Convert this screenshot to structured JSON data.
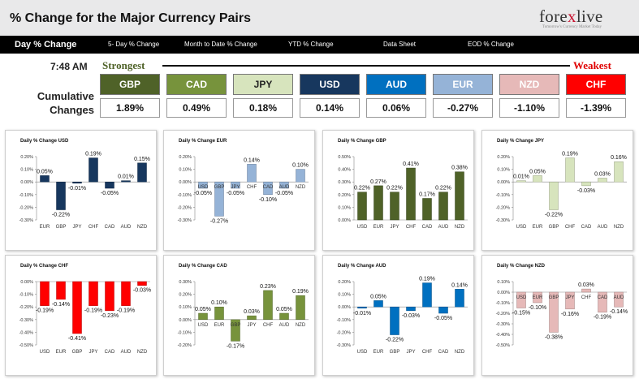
{
  "header": {
    "title": "% Change for the Major Currency Pairs",
    "logo_text_main": "fore",
    "logo_text_x": "x",
    "logo_text_end": "live",
    "logo_tagline": "Tomorrow's Currency Market Today"
  },
  "nav": {
    "items": [
      "Day % Change",
      "5- Day % Change",
      "Month to Date % Change",
      "YTD % Change",
      "Data Sheet",
      "EOD % Change"
    ]
  },
  "summary": {
    "time": "7:48 AM",
    "strongest_label": "Strongest",
    "weakest_label": "Weakest",
    "cumulative_line1": "Cumulative",
    "cumulative_line2": "Changes",
    "tiles": [
      {
        "code": "GBP",
        "value": "1.89%",
        "bg": "#4f6228",
        "fg": "#ffffff"
      },
      {
        "code": "CAD",
        "value": "0.49%",
        "bg": "#77933c",
        "fg": "#ffffff"
      },
      {
        "code": "JPY",
        "value": "0.18%",
        "bg": "#d7e4bd",
        "fg": "#222222"
      },
      {
        "code": "USD",
        "value": "0.14%",
        "bg": "#17375e",
        "fg": "#ffffff"
      },
      {
        "code": "AUD",
        "value": "0.06%",
        "bg": "#0070c0",
        "fg": "#ffffff"
      },
      {
        "code": "EUR",
        "value": "-0.27%",
        "bg": "#95b3d7",
        "fg": "#ffffff"
      },
      {
        "code": "NZD",
        "value": "-1.10%",
        "bg": "#e6b9b8",
        "fg": "#ffffff"
      },
      {
        "code": "CHF",
        "value": "-1.39%",
        "bg": "#ff0000",
        "fg": "#ffffff"
      }
    ]
  },
  "chart_data": [
    {
      "type": "bar",
      "title": "Daily % Change USD",
      "categories": [
        "EUR",
        "GBP",
        "JPY",
        "CHF",
        "CAD",
        "AUD",
        "NZD"
      ],
      "values": [
        0.05,
        -0.22,
        -0.01,
        0.19,
        -0.05,
        0.01,
        0.15
      ],
      "labels": [
        "0.05%",
        "-0.22%",
        "-0.01%",
        "0.19%",
        "-0.05%",
        "0.01%",
        "0.15%"
      ],
      "yticks": [
        "0.20%",
        "0.10%",
        "0.00%",
        "-0.10%",
        "-0.20%",
        "-0.30%"
      ],
      "ylim": [
        -0.3,
        0.2
      ],
      "color": "#17375e",
      "axis_at_zero": false
    },
    {
      "type": "bar",
      "title": "Daily % Change EUR",
      "categories": [
        "USD",
        "GBP",
        "JPY",
        "CHF",
        "CAD",
        "AUD",
        "NZD"
      ],
      "values": [
        -0.05,
        -0.27,
        -0.05,
        0.14,
        -0.1,
        -0.05,
        0.1
      ],
      "labels": [
        "-0.05%",
        "-0.27%",
        "-0.05%",
        "0.14%",
        "-0.10%",
        "-0.05%",
        "0.10%"
      ],
      "yticks": [
        "0.20%",
        "0.10%",
        "0.00%",
        "-0.10%",
        "-0.20%",
        "-0.30%"
      ],
      "ylim": [
        -0.3,
        0.2
      ],
      "color": "#95b3d7",
      "axis_at_zero": true
    },
    {
      "type": "bar",
      "title": "Daily % Change GBP",
      "categories": [
        "USD",
        "EUR",
        "JPY",
        "CHF",
        "CAD",
        "AUD",
        "NZD"
      ],
      "values": [
        0.22,
        0.27,
        0.22,
        0.41,
        0.17,
        0.22,
        0.38
      ],
      "labels": [
        "0.22%",
        "0.27%",
        "0.22%",
        "0.41%",
        "0.17%",
        "0.22%",
        "0.38%"
      ],
      "yticks": [
        "0.50%",
        "0.40%",
        "0.30%",
        "0.20%",
        "0.10%",
        "0.00%"
      ],
      "ylim": [
        0,
        0.5
      ],
      "color": "#4f6228",
      "axis_at_zero": false
    },
    {
      "type": "bar",
      "title": "Daily % Change JPY",
      "categories": [
        "USD",
        "EUR",
        "GBP",
        "CHF",
        "CAD",
        "AUD",
        "NZD"
      ],
      "values": [
        0.01,
        0.05,
        -0.22,
        0.19,
        -0.03,
        0.03,
        0.16
      ],
      "labels": [
        "0.01%",
        "0.05%",
        "-0.22%",
        "0.19%",
        "-0.03%",
        "0.03%",
        "0.16%"
      ],
      "yticks": [
        "0.20%",
        "0.10%",
        "0.00%",
        "-0.10%",
        "-0.20%",
        "-0.30%"
      ],
      "ylim": [
        -0.3,
        0.2
      ],
      "color": "#d7e4bd",
      "axis_at_zero": false
    },
    {
      "type": "bar",
      "title": "Daily % Change CHF",
      "categories": [
        "USD",
        "EUR",
        "GBP",
        "JPY",
        "CAD",
        "AUD",
        "NZD"
      ],
      "values": [
        -0.19,
        -0.14,
        -0.41,
        -0.19,
        -0.23,
        -0.19,
        -0.03
      ],
      "labels": [
        "-0.19%",
        "-0.14%",
        "-0.41%",
        "-0.19%",
        "-0.23%",
        "-0.19%",
        "-0.03%"
      ],
      "yticks": [
        "0.00%",
        "-0.10%",
        "-0.20%",
        "-0.30%",
        "-0.40%",
        "-0.50%"
      ],
      "ylim": [
        -0.5,
        0
      ],
      "color": "#ff0000",
      "axis_at_zero": false
    },
    {
      "type": "bar",
      "title": "Daily % Change CAD",
      "categories": [
        "USD",
        "EUR",
        "GBP",
        "JPY",
        "CHF",
        "AUD",
        "NZD"
      ],
      "values": [
        0.05,
        0.1,
        -0.17,
        0.03,
        0.23,
        0.05,
        0.19
      ],
      "labels": [
        "0.05%",
        "0.10%",
        "-0.17%",
        "0.03%",
        "0.23%",
        "0.05%",
        "0.19%"
      ],
      "yticks": [
        "0.30%",
        "0.20%",
        "0.10%",
        "0.00%",
        "-0.10%",
        "-0.20%"
      ],
      "ylim": [
        -0.2,
        0.3
      ],
      "color": "#77933c",
      "axis_at_zero": true
    },
    {
      "type": "bar",
      "title": "Daily % Change AUD",
      "categories": [
        "USD",
        "EUR",
        "GBP",
        "JPY",
        "CHF",
        "CAD",
        "NZD"
      ],
      "values": [
        -0.01,
        0.05,
        -0.22,
        -0.03,
        0.19,
        -0.05,
        0.14
      ],
      "labels": [
        "-0.01%",
        "0.05%",
        "-0.22%",
        "-0.03%",
        "0.19%",
        "-0.05%",
        "0.14%"
      ],
      "yticks": [
        "0.20%",
        "0.10%",
        "0.00%",
        "-0.10%",
        "-0.20%",
        "-0.30%"
      ],
      "ylim": [
        -0.3,
        0.2
      ],
      "color": "#0070c0",
      "axis_at_zero": false
    },
    {
      "type": "bar",
      "title": "Daily % Change NZD",
      "categories": [
        "USD",
        "EUR",
        "GBP",
        "JPY",
        "CHF",
        "CAD",
        "AUD"
      ],
      "values": [
        -0.15,
        -0.1,
        -0.38,
        -0.16,
        0.03,
        -0.19,
        -0.14
      ],
      "labels": [
        "-0.15%",
        "-0.10%",
        "-0.38%",
        "-0.16%",
        "0.03%",
        "-0.19%",
        "-0.14%"
      ],
      "yticks": [
        "0.10%",
        "0.00%",
        "-0.10%",
        "-0.20%",
        "-0.30%",
        "-0.40%",
        "-0.50%"
      ],
      "ylim": [
        -0.5,
        0.1
      ],
      "color": "#e6b9b8",
      "axis_at_zero": true
    }
  ]
}
